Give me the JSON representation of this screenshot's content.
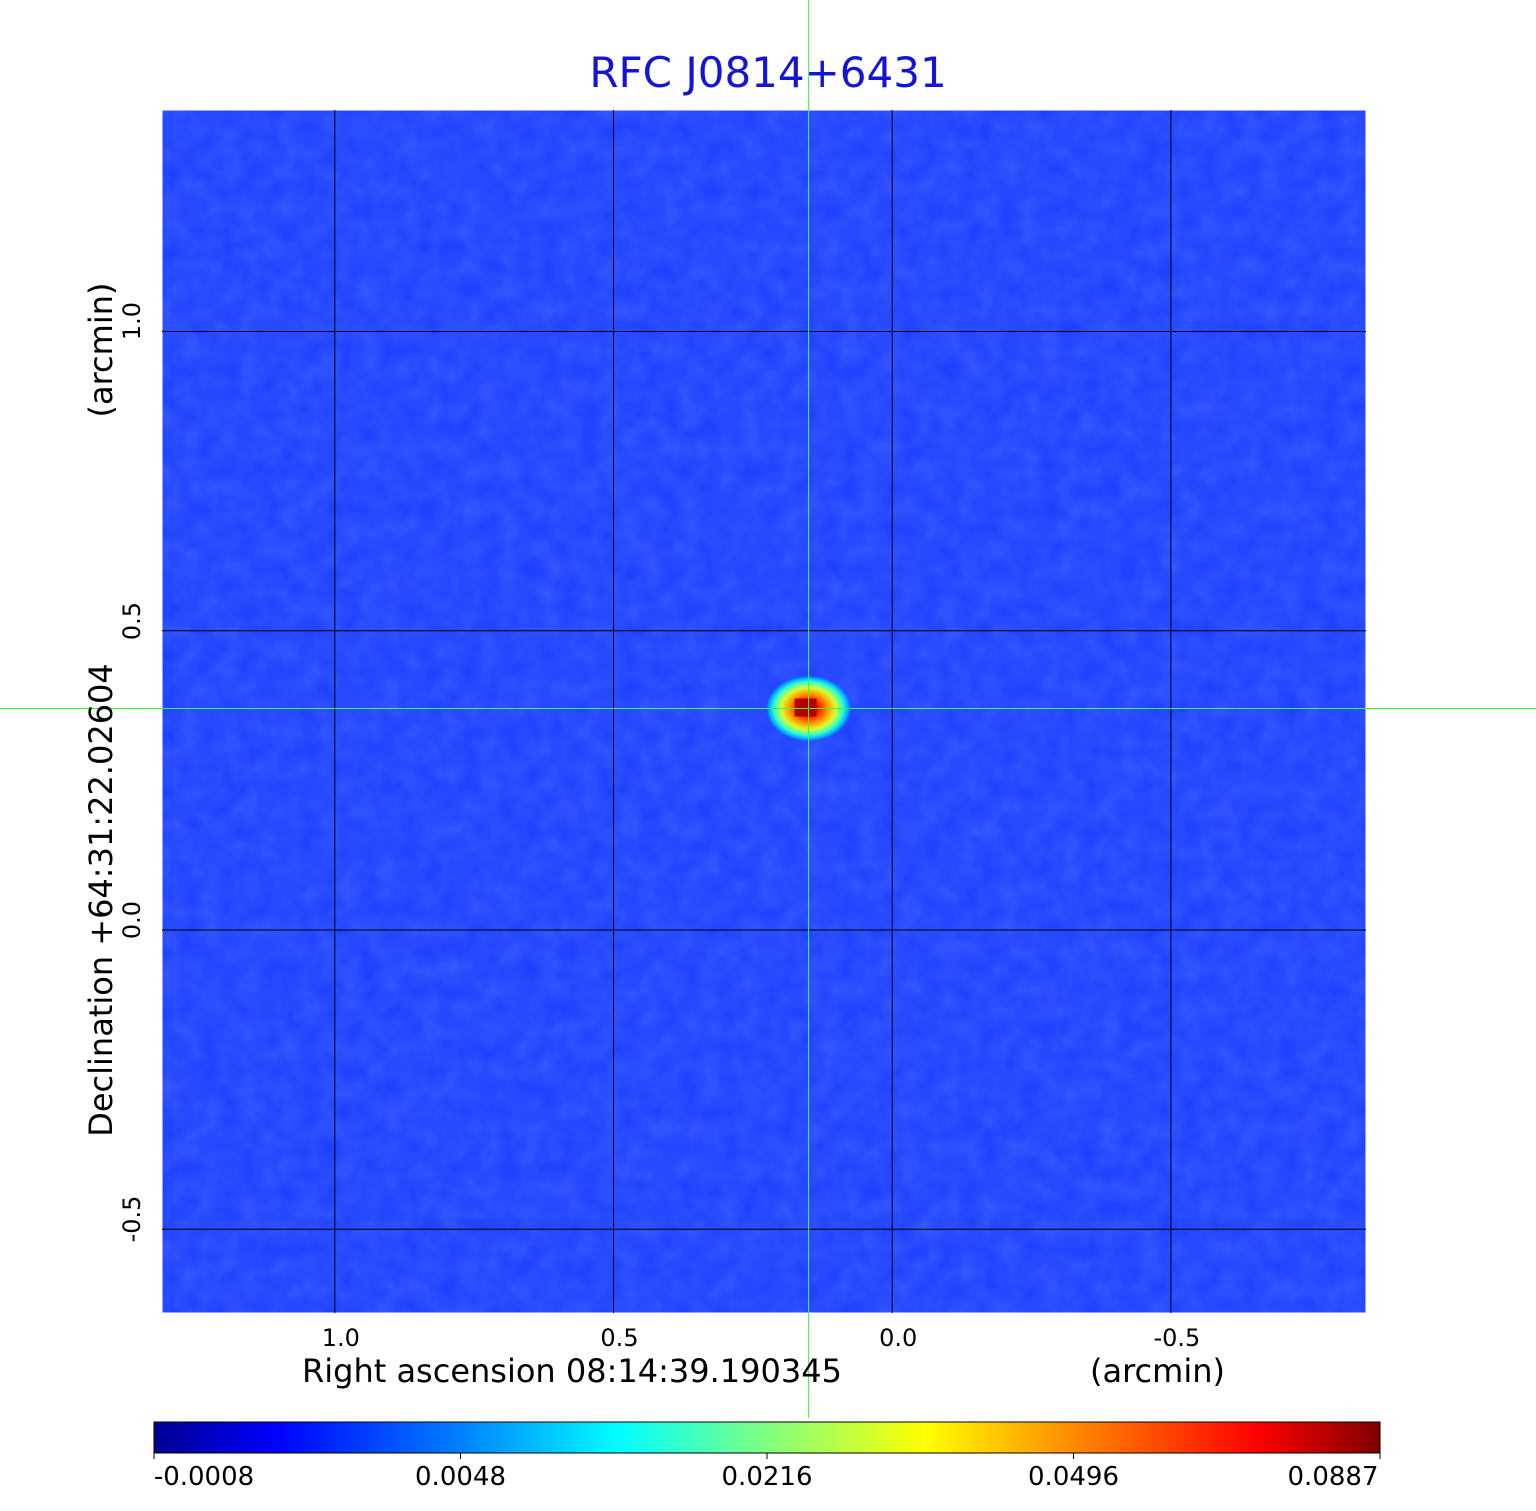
{
  "chart_data": {
    "type": "heatmap",
    "title": "RFC J0814+6431",
    "xlabel": "Right ascension  08:14:39.190345",
    "xunit": "(arcmin)",
    "ylabel": "Declination  +64:31:22.02604",
    "yunit": "(arcmin)",
    "xlim": [
      1.31,
      -0.85
    ],
    "ylim": [
      -0.64,
      1.37
    ],
    "x_ticks": [
      "1.0",
      "0.5",
      "0.0",
      "-0.5"
    ],
    "x_tick_values": [
      1.0,
      0.5,
      0.0,
      -0.5
    ],
    "y_ticks": [
      "1.0",
      "0.5",
      "0.0",
      "-0.5"
    ],
    "y_tick_values": [
      1.0,
      0.5,
      0.0,
      -0.5
    ],
    "grid": true,
    "colormap": "jet",
    "source_peak": {
      "x": 0.15,
      "y": 0.37,
      "value": 0.0887
    },
    "crosshair": {
      "x": 0.15,
      "y": 0.37,
      "color": "#33ff33"
    },
    "colorbar": {
      "labels": [
        "-0.0008",
        "0.0048",
        "0.0216",
        "0.0496",
        "0.0887"
      ],
      "values": [
        -0.0008,
        0.0048,
        0.0216,
        0.0496,
        0.0887
      ]
    },
    "colors": {
      "background_field": "#1a3cff",
      "title": "#1414d6",
      "frame": "#ffffff"
    }
  }
}
